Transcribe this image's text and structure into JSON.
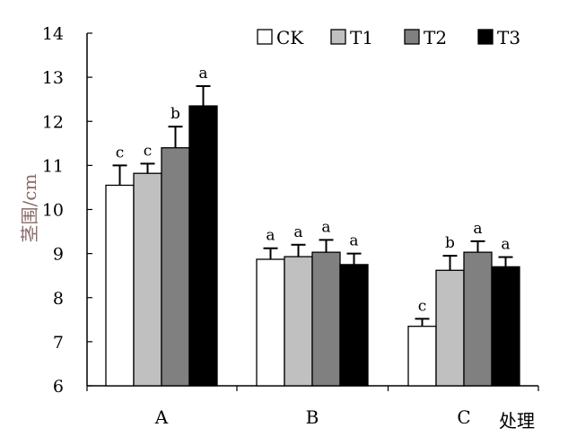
{
  "chart_data": {
    "type": "bar",
    "categories": [
      "A",
      "B",
      "C"
    ],
    "series": [
      {
        "name": "CK",
        "color": "#ffffff",
        "values": [
          10.55,
          8.87,
          7.35
        ],
        "errors": [
          0.45,
          0.25,
          0.17
        ],
        "letters": [
          "c",
          "a",
          "c"
        ]
      },
      {
        "name": "T1",
        "color": "#c0c0c0",
        "values": [
          10.82,
          8.93,
          8.62
        ],
        "errors": [
          0.22,
          0.27,
          0.33
        ],
        "letters": [
          "c",
          "a",
          "b"
        ]
      },
      {
        "name": "T2",
        "color": "#808080",
        "values": [
          11.4,
          9.03,
          9.03
        ],
        "errors": [
          0.48,
          0.28,
          0.25
        ],
        "letters": [
          "b",
          "a",
          "a"
        ]
      },
      {
        "name": "T3",
        "color": "#000000",
        "values": [
          12.35,
          8.75,
          8.7
        ],
        "errors": [
          0.45,
          0.25,
          0.22
        ],
        "letters": [
          "a",
          "a",
          "a"
        ]
      }
    ],
    "xlabel": "处理",
    "ylabel": "茎围/cm",
    "ylim": [
      6,
      14
    ],
    "yticks": [
      6,
      7,
      8,
      9,
      10,
      11,
      12,
      13,
      14
    ],
    "legend_position": "top-right",
    "grid": false
  }
}
